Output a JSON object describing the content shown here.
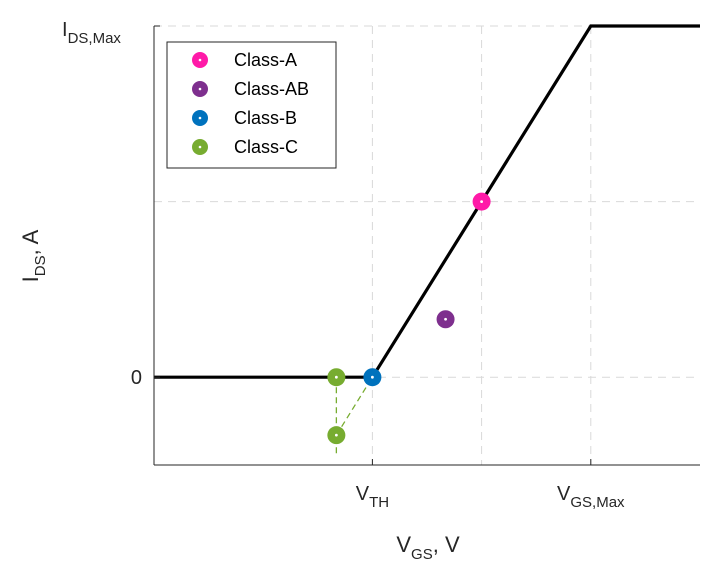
{
  "chart_data": {
    "type": "line",
    "title": "",
    "xlabel": {
      "main": "V",
      "sub": "GS",
      "suffix": ", V"
    },
    "ylabel": {
      "main": "I",
      "sub": "DS",
      "suffix": ", A"
    },
    "xlim": [
      -1,
      4
    ],
    "ylim": [
      -0.5,
      2
    ],
    "x_ticks": [
      {
        "value": 1,
        "main": "V",
        "sub": "TH"
      },
      {
        "value": 3,
        "main": "V",
        "sub": "GS,Max"
      }
    ],
    "y_ticks": [
      {
        "value": 0,
        "main": "0",
        "sub": ""
      },
      {
        "value": 2,
        "main": "I",
        "sub": "DS,Max"
      }
    ],
    "grid": true,
    "grid_x": [
      1,
      2,
      3
    ],
    "grid_y": [
      0,
      1,
      2
    ],
    "legend_position": "top-left",
    "transfer_curve": {
      "x": [
        -1,
        1,
        3,
        4
      ],
      "y": [
        0,
        0,
        2,
        2
      ],
      "color": "#000000"
    },
    "series": [
      {
        "name": "Class-A",
        "color": "#ff1aa8",
        "points": [
          [
            2.0,
            1.0
          ]
        ]
      },
      {
        "name": "Class-AB",
        "color": "#7e2f8e",
        "points": [
          [
            1.67,
            0.33
          ]
        ]
      },
      {
        "name": "Class-B",
        "color": "#0072bd",
        "points": [
          [
            1.0,
            0.0
          ]
        ]
      },
      {
        "name": "Class-C",
        "color": "#77ac30",
        "points": [
          [
            0.67,
            0.0
          ],
          [
            0.67,
            -0.33
          ]
        ]
      }
    ],
    "guide_lines": [
      {
        "color": "#77ac30",
        "x": [
          0.67,
          0.67
        ],
        "y": [
          0.0,
          -0.45
        ]
      },
      {
        "color": "#77ac30",
        "x": [
          0.67,
          1.0
        ],
        "y": [
          -0.33,
          0.0
        ]
      }
    ]
  }
}
